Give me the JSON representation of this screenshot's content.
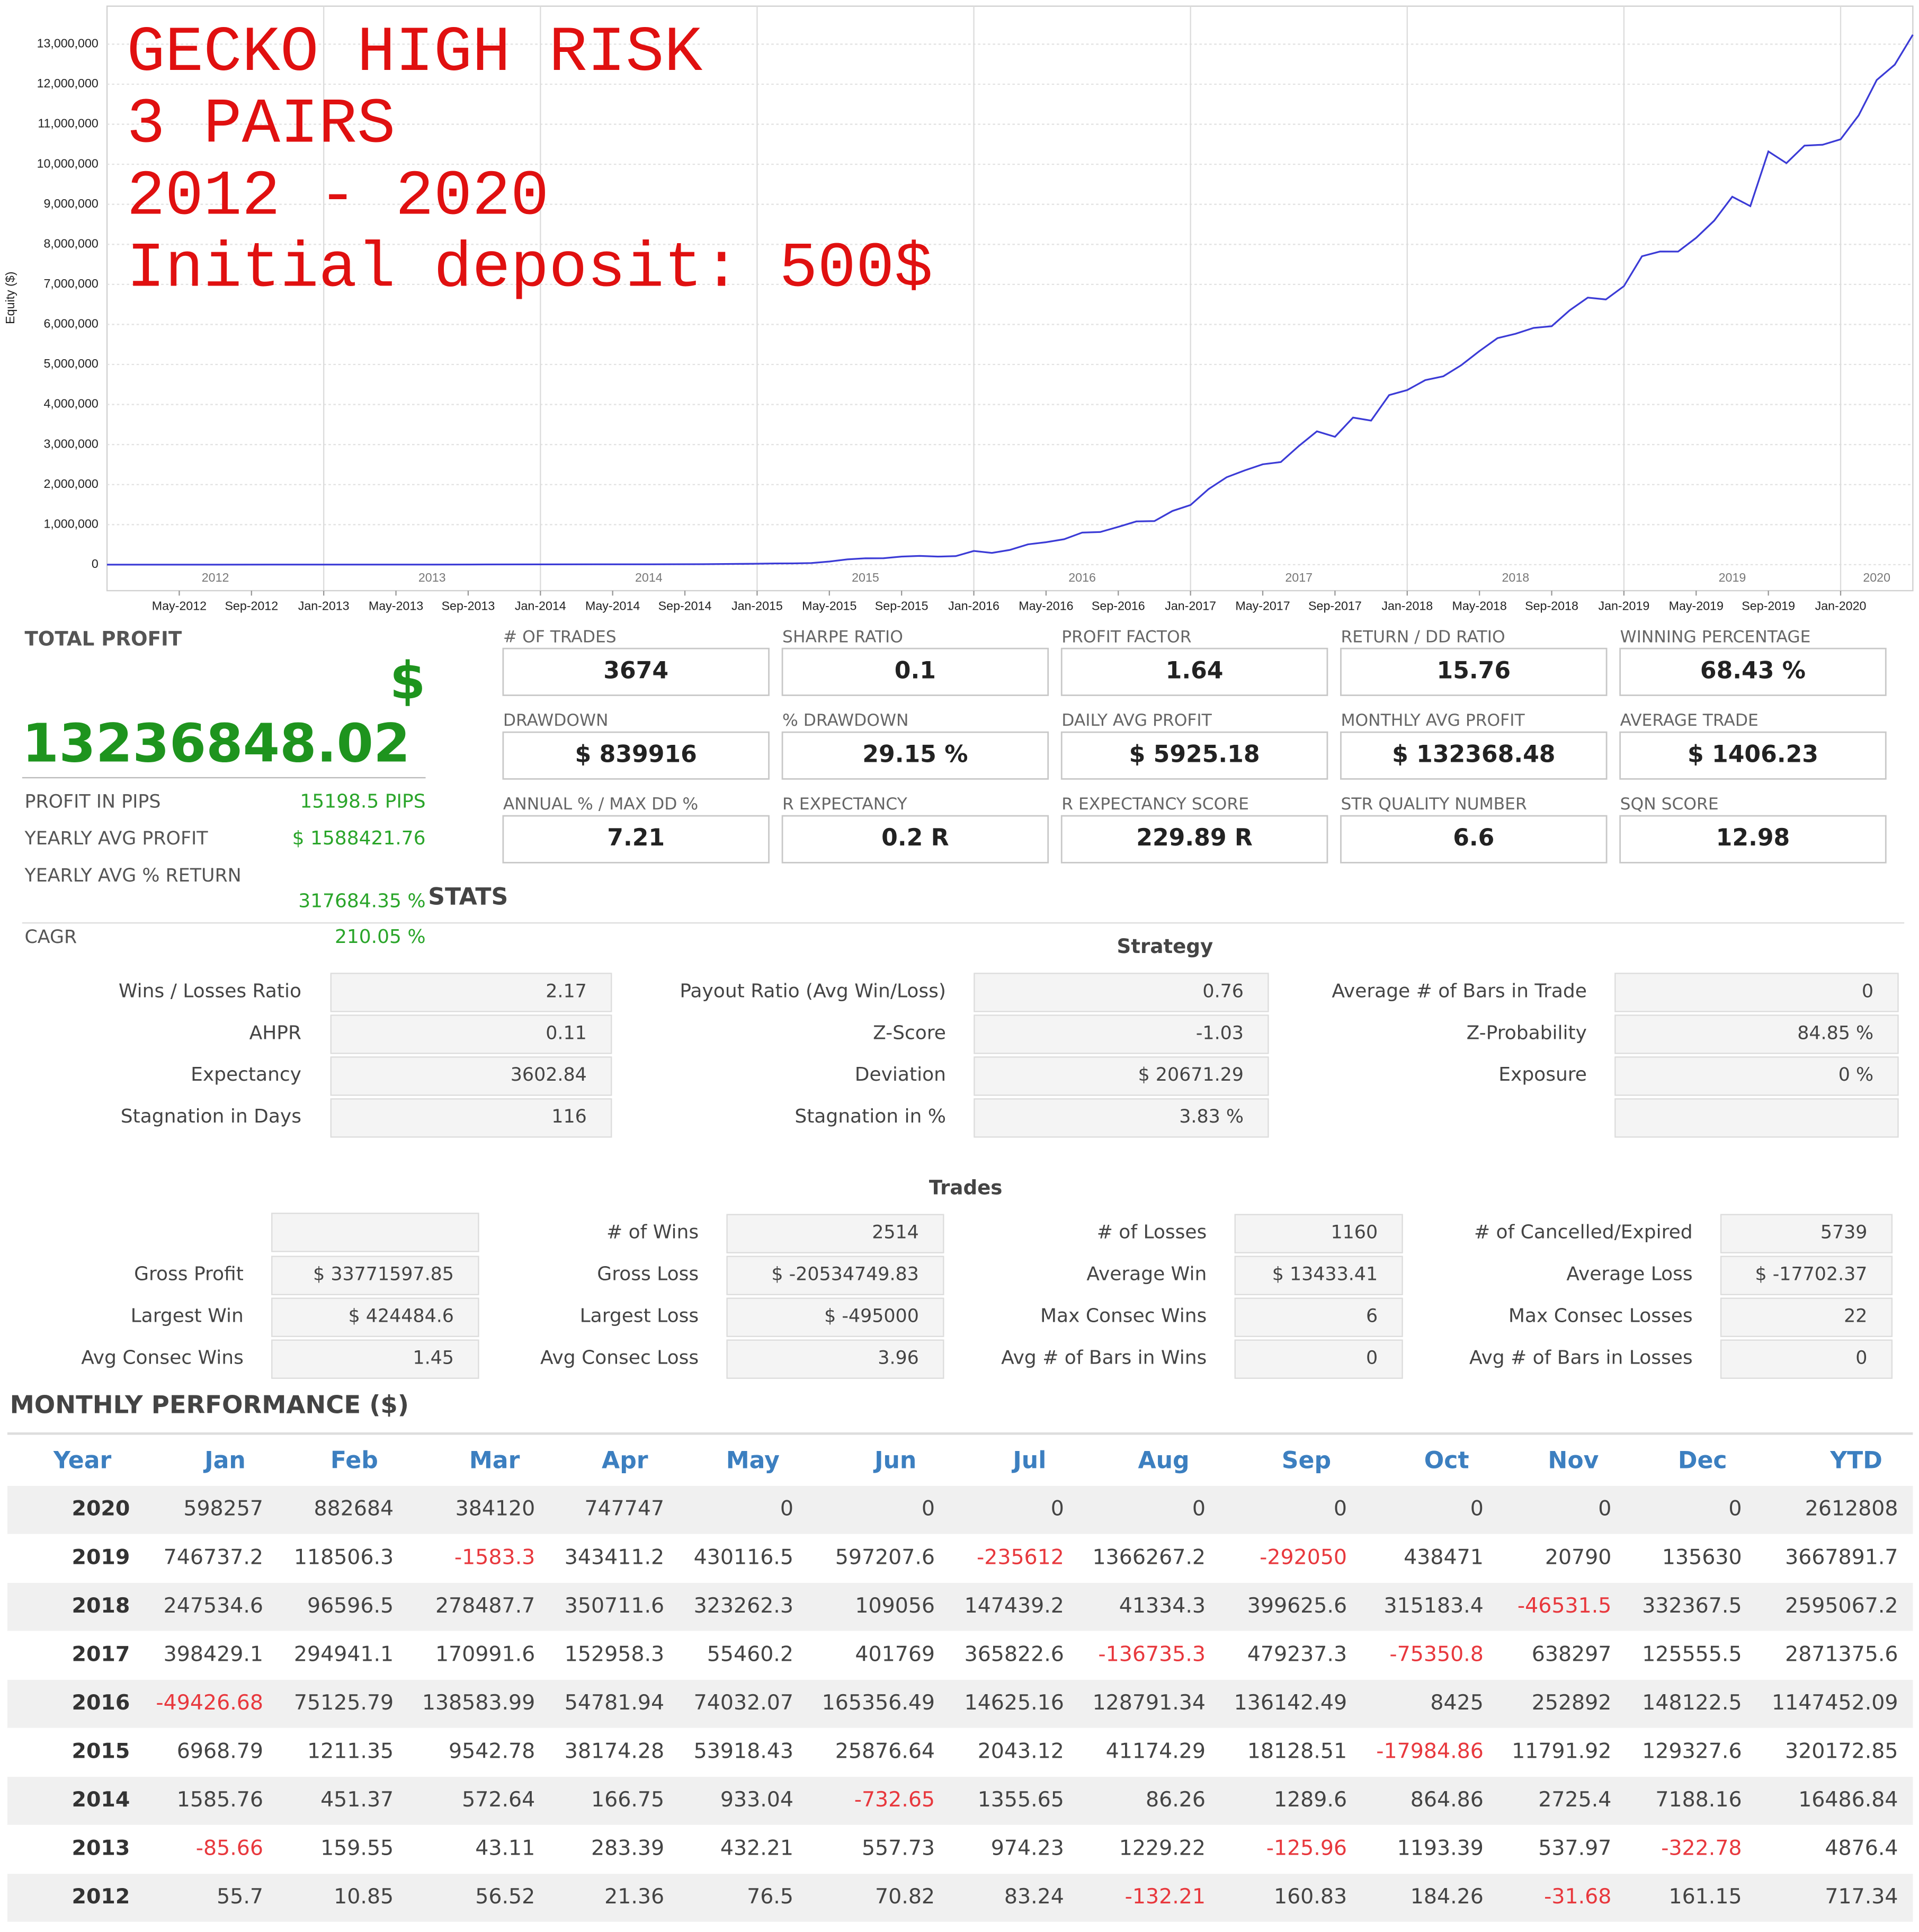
{
  "chart_data": {
    "type": "line",
    "y_label": "Equity ($)",
    "annotations": [
      "GECKO HIGH RISK",
      "3 PAIRS",
      "2012 - 2020",
      "Initial deposit: 500$"
    ],
    "color": "#3b3bd6",
    "grid": true,
    "xlim": [
      "2012-01",
      "2020-05"
    ],
    "ylim": [
      -650000,
      13950000
    ],
    "yticks": [
      0,
      {
        "value": 1000000,
        "label": "1,000,000"
      },
      {
        "value": 2000000,
        "label": "2,000,000"
      },
      {
        "value": 3000000,
        "label": "3,000,000"
      },
      {
        "value": 4000000,
        "label": "4,000,000"
      },
      {
        "value": 5000000,
        "label": "5,000,000"
      },
      {
        "value": 6000000,
        "label": "6,000,000"
      },
      {
        "value": 7000000,
        "label": "7,000,000"
      },
      {
        "value": 8000000,
        "label": "8,000,000"
      },
      {
        "value": 9000000,
        "label": "9,000,000"
      },
      {
        "value": 10000000,
        "label": "10,000,000"
      },
      {
        "value": 11000000,
        "label": "11,000,000"
      },
      {
        "value": 12000000,
        "label": "12,000,000"
      },
      {
        "value": 13000000,
        "label": "13,000,000"
      }
    ],
    "xticks": [
      {
        "value": "2012-05",
        "label": "May-2012"
      },
      {
        "value": "2012-09",
        "label": "Sep-2012"
      },
      {
        "value": "2013-01",
        "label": "Jan-2013"
      },
      {
        "value": "2013-05",
        "label": "May-2013"
      },
      {
        "value": "2013-09",
        "label": "Sep-2013"
      },
      {
        "value": "2014-01",
        "label": "Jan-2014"
      },
      {
        "value": "2014-05",
        "label": "May-2014"
      },
      {
        "value": "2014-09",
        "label": "Sep-2014"
      },
      {
        "value": "2015-01",
        "label": "Jan-2015"
      },
      {
        "value": "2015-05",
        "label": "May-2015"
      },
      {
        "value": "2015-09",
        "label": "Sep-2015"
      },
      {
        "value": "2016-01",
        "label": "Jan-2016"
      },
      {
        "value": "2016-05",
        "label": "May-2016"
      },
      {
        "value": "2016-09",
        "label": "Sep-2016"
      },
      {
        "value": "2017-01",
        "label": "Jan-2017"
      },
      {
        "value": "2017-05",
        "label": "May-2017"
      },
      {
        "value": "2017-09",
        "label": "Sep-2017"
      },
      {
        "value": "2018-01",
        "label": "Jan-2018"
      },
      {
        "value": "2018-05",
        "label": "May-2018"
      },
      {
        "value": "2018-09",
        "label": "Sep-2018"
      },
      {
        "value": "2019-01",
        "label": "Jan-2019"
      },
      {
        "value": "2019-05",
        "label": "May-2019"
      },
      {
        "value": "2019-09",
        "label": "Sep-2019"
      },
      {
        "value": "2020-01",
        "label": "Jan-2020"
      }
    ],
    "year_ticks": [
      {
        "value": "2012-07",
        "label": "2012"
      },
      {
        "value": "2013-07",
        "label": "2013"
      },
      {
        "value": "2014-07",
        "label": "2014"
      },
      {
        "value": "2015-07",
        "label": "2015"
      },
      {
        "value": "2016-07",
        "label": "2016"
      },
      {
        "value": "2017-07",
        "label": "2017"
      },
      {
        "value": "2018-07",
        "label": "2018"
      },
      {
        "value": "2019-07",
        "label": "2019"
      },
      {
        "value": "2020-03",
        "label": "2020"
      }
    ],
    "x": [
      "2012-01",
      "2012-04",
      "2012-07",
      "2012-10",
      "2013-01",
      "2013-04",
      "2013-07",
      "2013-10",
      "2014-01",
      "2014-04",
      "2014-07",
      "2014-10",
      "2015-01",
      "2015-02",
      "2015-03",
      "2015-04",
      "2015-05",
      "2015-06",
      "2015-07",
      "2015-08",
      "2015-09",
      "2015-10",
      "2015-11",
      "2015-12",
      "2016-01",
      "2016-02",
      "2016-03",
      "2016-04",
      "2016-05",
      "2016-06",
      "2016-07",
      "2016-08",
      "2016-09",
      "2016-10",
      "2016-11",
      "2016-12",
      "2017-01",
      "2017-02",
      "2017-03",
      "2017-04",
      "2017-05",
      "2017-06",
      "2017-07",
      "2017-08",
      "2017-09",
      "2017-10",
      "2017-11",
      "2017-12",
      "2018-01",
      "2018-02",
      "2018-03",
      "2018-04",
      "2018-05",
      "2018-06",
      "2018-07",
      "2018-08",
      "2018-09",
      "2018-10",
      "2018-11",
      "2018-12",
      "2019-01",
      "2019-02",
      "2019-03",
      "2019-04",
      "2019-05",
      "2019-06",
      "2019-07",
      "2019-08",
      "2019-09",
      "2019-10",
      "2019-11",
      "2019-12",
      "2020-01",
      "2020-02",
      "2020-03",
      "2020-04",
      "2020-05"
    ],
    "values": [
      500,
      620,
      720,
      900,
      1200,
      1300,
      2600,
      4700,
      6100,
      8700,
      9100,
      11900,
      22600,
      29600,
      30800,
      40300,
      78500,
      132000,
      158000,
      160000,
      201000,
      219000,
      201000,
      213000,
      342000,
      293000,
      368000,
      507000,
      561000,
      635000,
      801000,
      815000,
      944000,
      1080000,
      1088000,
      1341000,
      1490000,
      1888000,
      2183000,
      2354000,
      2507000,
      2563000,
      2965000,
      3330000,
      3194000,
      3673000,
      3598000,
      4236000,
      4361000,
      4609000,
      4705000,
      4984000,
      5335000,
      5658000,
      5767000,
      5914000,
      5956000,
      6355000,
      6670000,
      6624000,
      6956000,
      7703000,
      7821000,
      7820000,
      8163000,
      8593000,
      9190000,
      8955000,
      10321000,
      10029000,
      10467000,
      10488000,
      10624000,
      11222000,
      12105000,
      12489000,
      13236000
    ]
  },
  "summary": {
    "title": "TOTAL PROFIT",
    "currency": "$",
    "value": "13236848.02",
    "rows": [
      {
        "label": "PROFIT IN PIPS",
        "value": "15198.5 PIPS"
      },
      {
        "label": "YEARLY AVG PROFIT",
        "value": "$ 1588421.76"
      },
      {
        "label": "YEARLY AVG % RETURN",
        "value": "317684.35 %"
      },
      {
        "label": "CAGR",
        "value": "210.05 %"
      }
    ]
  },
  "metrics": [
    {
      "label": "# OF TRADES",
      "value": "3674"
    },
    {
      "label": "SHARPE RATIO",
      "value": "0.1"
    },
    {
      "label": "PROFIT FACTOR",
      "value": "1.64"
    },
    {
      "label": "RETURN / DD RATIO",
      "value": "15.76"
    },
    {
      "label": "WINNING PERCENTAGE",
      "value": "68.43 %"
    },
    {
      "label": "DRAWDOWN",
      "value": "$ 839916"
    },
    {
      "label": "% DRAWDOWN",
      "value": "29.15 %"
    },
    {
      "label": "DAILY AVG PROFIT",
      "value": "$ 5925.18"
    },
    {
      "label": "MONTHLY AVG PROFIT",
      "value": "$ 132368.48"
    },
    {
      "label": "AVERAGE TRADE",
      "value": "$ 1406.23"
    },
    {
      "label": "ANNUAL % / MAX DD %",
      "value": "7.21"
    },
    {
      "label": "R EXPECTANCY",
      "value": "0.2 R"
    },
    {
      "label": "R EXPECTANCY SCORE",
      "value": "229.89 R"
    },
    {
      "label": "STR QUALITY NUMBER",
      "value": "6.6"
    },
    {
      "label": "SQN SCORE",
      "value": "12.98"
    }
  ],
  "stats_title": "STATS",
  "strategy": {
    "title": "Strategy",
    "columns": [
      [
        {
          "label": "Wins / Losses Ratio",
          "value": "2.17"
        },
        {
          "label": "AHPR",
          "value": "0.11"
        },
        {
          "label": "Expectancy",
          "value": "3602.84"
        },
        {
          "label": "Stagnation in Days",
          "value": "116"
        }
      ],
      [
        {
          "label": "Payout Ratio (Avg Win/Loss)",
          "value": "0.76"
        },
        {
          "label": "Z-Score",
          "value": "-1.03"
        },
        {
          "label": "Deviation",
          "value": "$ 20671.29"
        },
        {
          "label": "Stagnation in %",
          "value": "3.83 %"
        }
      ],
      [
        {
          "label": "Average # of Bars in Trade",
          "value": "0"
        },
        {
          "label": "Z-Probability",
          "value": "84.85 %"
        },
        {
          "label": "Exposure",
          "value": "0 %"
        }
      ]
    ]
  },
  "trades": {
    "title": "Trades",
    "columns": [
      [
        {
          "label": "Gross Profit",
          "value": "$ 33771597.85"
        },
        {
          "label": "Largest Win",
          "value": "$ 424484.6"
        },
        {
          "label": "Avg Consec Wins",
          "value": "1.45"
        }
      ],
      [
        {
          "label": "# of Wins",
          "value": "2514"
        },
        {
          "label": "Gross Loss",
          "value": "$ -20534749.83"
        },
        {
          "label": "Largest Loss",
          "value": "$ -495000"
        },
        {
          "label": "Avg Consec Loss",
          "value": "3.96"
        }
      ],
      [
        {
          "label": "# of Losses",
          "value": "1160"
        },
        {
          "label": "Average Win",
          "value": "$ 13433.41"
        },
        {
          "label": "Max Consec Wins",
          "value": "6"
        },
        {
          "label": "Avg # of Bars in Wins",
          "value": "0"
        }
      ],
      [
        {
          "label": "# of Cancelled/Expired",
          "value": "5739"
        },
        {
          "label": "Average Loss",
          "value": "$ -17702.37"
        },
        {
          "label": "Max Consec Losses",
          "value": "22"
        },
        {
          "label": "Avg # of Bars in Losses",
          "value": "0"
        }
      ]
    ]
  },
  "monthly": {
    "title": "MONTHLY PERFORMANCE ($)",
    "negative_color": "#e8383d",
    "header": [
      "Year",
      "Jan",
      "Feb",
      "Mar",
      "Apr",
      "May",
      "Jun",
      "Jul",
      "Aug",
      "Sep",
      "Oct",
      "Nov",
      "Dec",
      "YTD"
    ],
    "rows": [
      [
        "2020",
        "598257",
        "882684",
        "384120",
        "747747",
        "0",
        "0",
        "0",
        "0",
        "0",
        "0",
        "0",
        "0",
        "2612808"
      ],
      [
        "2019",
        "746737.2",
        "118506.3",
        "-1583.3",
        "343411.2",
        "430116.5",
        "597207.6",
        "-235612",
        "1366267.2",
        "-292050",
        "438471",
        "20790",
        "135630",
        "3667891.7"
      ],
      [
        "2018",
        "247534.6",
        "96596.5",
        "278487.7",
        "350711.6",
        "323262.3",
        "109056",
        "147439.2",
        "41334.3",
        "399625.6",
        "315183.4",
        "-46531.5",
        "332367.5",
        "2595067.2"
      ],
      [
        "2017",
        "398429.1",
        "294941.1",
        "170991.6",
        "152958.3",
        "55460.2",
        "401769",
        "365822.6",
        "-136735.3",
        "479237.3",
        "-75350.8",
        "638297",
        "125555.5",
        "2871375.6"
      ],
      [
        "2016",
        "-49426.68",
        "75125.79",
        "138583.99",
        "54781.94",
        "74032.07",
        "165356.49",
        "14625.16",
        "128791.34",
        "136142.49",
        "8425",
        "252892",
        "148122.5",
        "1147452.09"
      ],
      [
        "2015",
        "6968.79",
        "1211.35",
        "9542.78",
        "38174.28",
        "53918.43",
        "25876.64",
        "2043.12",
        "41174.29",
        "18128.51",
        "-17984.86",
        "11791.92",
        "129327.6",
        "320172.85"
      ],
      [
        "2014",
        "1585.76",
        "451.37",
        "572.64",
        "166.75",
        "933.04",
        "-732.65",
        "1355.65",
        "86.26",
        "1289.6",
        "864.86",
        "2725.4",
        "7188.16",
        "16486.84"
      ],
      [
        "2013",
        "-85.66",
        "159.55",
        "43.11",
        "283.39",
        "432.21",
        "557.73",
        "974.23",
        "1229.22",
        "-125.96",
        "1193.39",
        "537.97",
        "-322.78",
        "4876.4"
      ],
      [
        "2012",
        "55.7",
        "10.85",
        "56.52",
        "21.36",
        "76.5",
        "70.82",
        "83.24",
        "-132.21",
        "160.83",
        "184.26",
        "-31.68",
        "161.15",
        "717.34"
      ]
    ]
  }
}
